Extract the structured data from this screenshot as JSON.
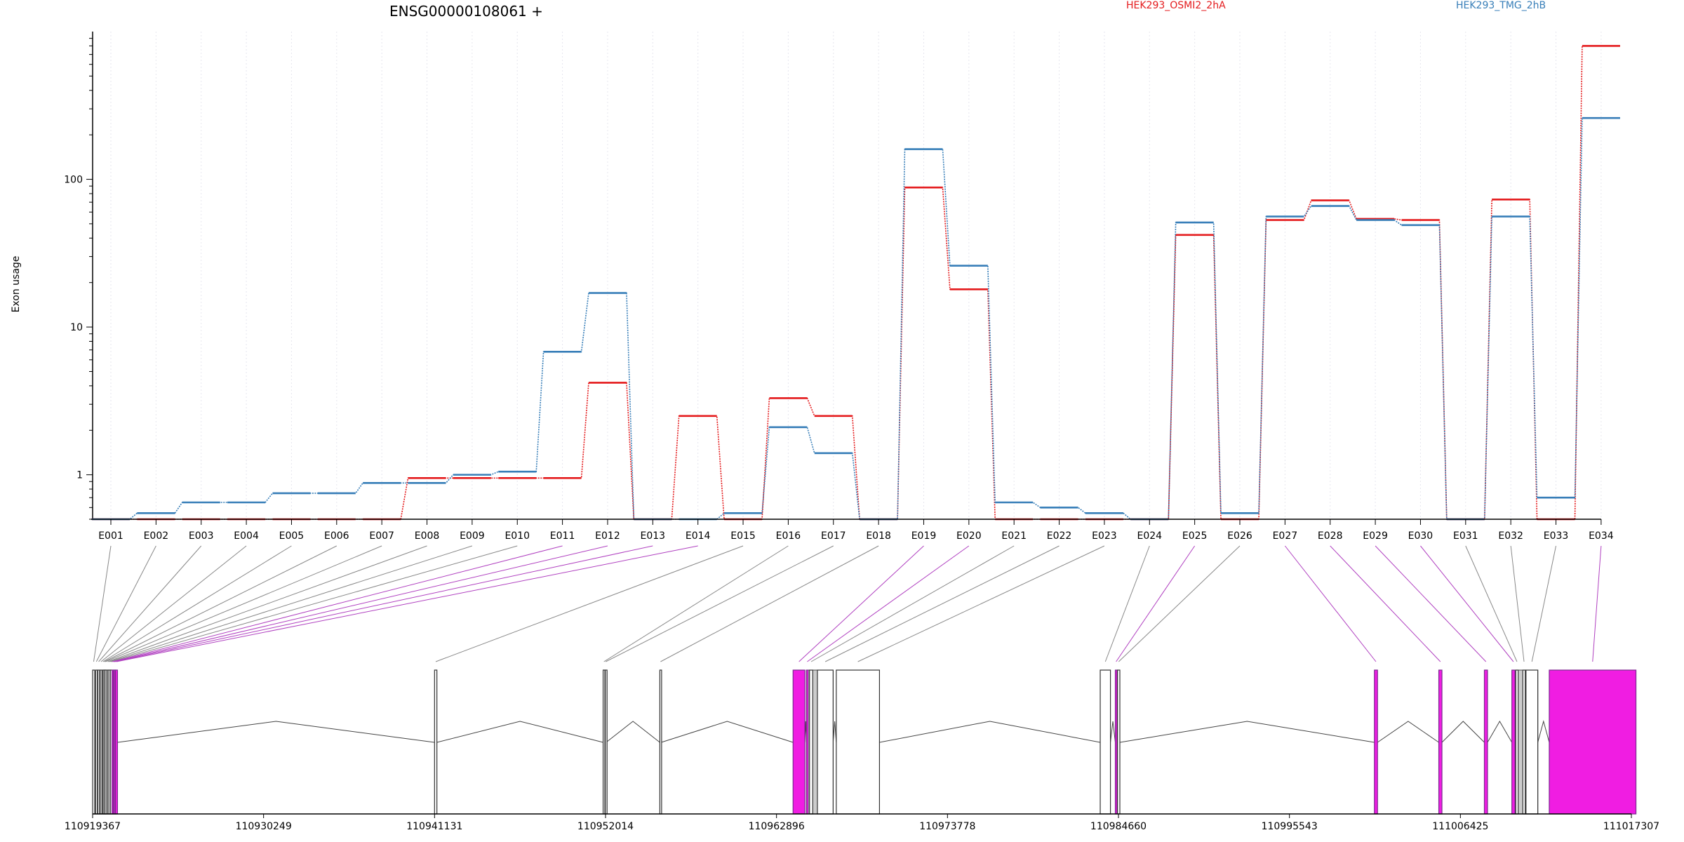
{
  "chart_data": {
    "type": "line",
    "title": "ENSG00000108061 +",
    "ylabel": "Exon usage",
    "xlabel": "",
    "yscale": "log",
    "ylim": [
      0.5,
      1000
    ],
    "yticks": [
      1,
      10,
      100
    ],
    "ytick_labels": [
      "1",
      "10",
      "100"
    ],
    "grid": "vertical dotted lines at exon centers",
    "legend_position": "top",
    "categories": [
      "E001",
      "E002",
      "E003",
      "E004",
      "E005",
      "E006",
      "E007",
      "E008",
      "E009",
      "E010",
      "E011",
      "E012",
      "E013",
      "E014",
      "E015",
      "E016",
      "E017",
      "E018",
      "E019",
      "E020",
      "E021",
      "E022",
      "E023",
      "E024",
      "E025",
      "E026",
      "E027",
      "E028",
      "E029",
      "E030",
      "E031",
      "E032",
      "E033",
      "E034"
    ],
    "series": [
      {
        "name": "HEK293_OSMI2_2hA",
        "color": "#e41a1c",
        "values": [
          0.5,
          0.5,
          0.5,
          0.5,
          0.5,
          0.5,
          0.5,
          0.95,
          0.95,
          0.95,
          0.95,
          4.2,
          0.5,
          2.5,
          0.5,
          3.3,
          2.5,
          0.5,
          88,
          18,
          0.5,
          0.5,
          0.5,
          0.5,
          42,
          0.5,
          53,
          72,
          54,
          53,
          0.5,
          73,
          0.5,
          800
        ]
      },
      {
        "name": "HEK293_TMG_2hB",
        "color": "#377eb8",
        "values": [
          0.5,
          0.55,
          0.65,
          0.65,
          0.75,
          0.75,
          0.88,
          0.88,
          1.0,
          1.05,
          6.8,
          17,
          0.5,
          0.5,
          0.55,
          2.1,
          1.4,
          0.5,
          160,
          26,
          0.65,
          0.6,
          0.55,
          0.5,
          51,
          0.55,
          56,
          66,
          53,
          49,
          0.5,
          56,
          0.7,
          260
        ]
      }
    ],
    "gene_model": {
      "xlim": [
        110919367,
        111017307
      ],
      "xticks": [
        110919367,
        110930249,
        110941131,
        110952014,
        110962896,
        110973778,
        110984660,
        110995543,
        111006425,
        111017307
      ],
      "xtick_labels": [
        "110919367",
        "110930249",
        "110941131",
        "110952014",
        "110962896",
        "110973778",
        "110984660",
        "110995543",
        "111006425",
        "111017307"
      ],
      "highlight_color": "#f01de2",
      "counting_bin_color": "#cccccc",
      "exons": [
        {
          "id": "E001",
          "start": 110919367,
          "end": 110919500,
          "highlighted": false
        },
        {
          "id": "E002",
          "start": 110919560,
          "end": 110919650,
          "highlighted": false
        },
        {
          "id": "E003",
          "start": 110919700,
          "end": 110919800,
          "highlighted": false
        },
        {
          "id": "E004",
          "start": 110919850,
          "end": 110919950,
          "highlighted": false
        },
        {
          "id": "E005",
          "start": 110920000,
          "end": 110920050,
          "highlighted": false
        },
        {
          "id": "E006",
          "start": 110920080,
          "end": 110920130,
          "highlighted": false
        },
        {
          "id": "E007",
          "start": 110920160,
          "end": 110920210,
          "highlighted": false
        },
        {
          "id": "E008",
          "start": 110920300,
          "end": 110920360,
          "highlighted": false
        },
        {
          "id": "E009",
          "start": 110920400,
          "end": 110920460,
          "highlighted": false
        },
        {
          "id": "E010",
          "start": 110920500,
          "end": 110920560,
          "highlighted": false
        },
        {
          "id": "E011",
          "start": 110920600,
          "end": 110920650,
          "highlighted": true
        },
        {
          "id": "E012",
          "start": 110920680,
          "end": 110920730,
          "highlighted": true
        },
        {
          "id": "E013",
          "start": 110920750,
          "end": 110920800,
          "highlighted": true
        },
        {
          "id": "E014",
          "start": 110920820,
          "end": 110920950,
          "highlighted": true
        },
        {
          "id": "E015",
          "start": 110941131,
          "end": 110941280,
          "highlighted": false
        },
        {
          "id": "E016",
          "start": 110951860,
          "end": 110951960,
          "highlighted": false
        },
        {
          "id": "E017",
          "start": 110952000,
          "end": 110952050,
          "highlighted": false
        },
        {
          "id": "E018",
          "start": 110955470,
          "end": 110955560,
          "highlighted": false
        },
        {
          "id": "E019",
          "start": 110963950,
          "end": 110964700,
          "highlighted": true
        },
        {
          "id": "E020",
          "start": 110964800,
          "end": 110964900,
          "highlighted": true
        },
        {
          "id": "E021",
          "start": 110965000,
          "end": 110965200,
          "highlighted": false
        },
        {
          "id": "E022",
          "start": 110965500,
          "end": 110966500,
          "highlighted": false
        },
        {
          "id": "E023",
          "start": 110966700,
          "end": 110969450,
          "highlighted": false
        },
        {
          "id": "E024",
          "start": 110983500,
          "end": 110984150,
          "highlighted": false
        },
        {
          "id": "E025",
          "start": 110984460,
          "end": 110984560,
          "highlighted": true
        },
        {
          "id": "E026",
          "start": 110984600,
          "end": 110984750,
          "highlighted": false
        },
        {
          "id": "E027",
          "start": 111000950,
          "end": 111001150,
          "highlighted": true
        },
        {
          "id": "E028",
          "start": 111005050,
          "end": 111005250,
          "highlighted": true
        },
        {
          "id": "E029",
          "start": 111007950,
          "end": 111008150,
          "highlighted": true
        },
        {
          "id": "E030",
          "start": 111009700,
          "end": 111009900,
          "highlighted": true
        },
        {
          "id": "E031",
          "start": 111009950,
          "end": 111010100,
          "highlighted": false
        },
        {
          "id": "E032",
          "start": 111010400,
          "end": 111010550,
          "highlighted": false
        },
        {
          "id": "E033",
          "start": 111010600,
          "end": 111011350,
          "highlighted": false
        },
        {
          "id": "E034",
          "start": 111012080,
          "end": 111017600,
          "highlighted": true
        }
      ]
    }
  }
}
